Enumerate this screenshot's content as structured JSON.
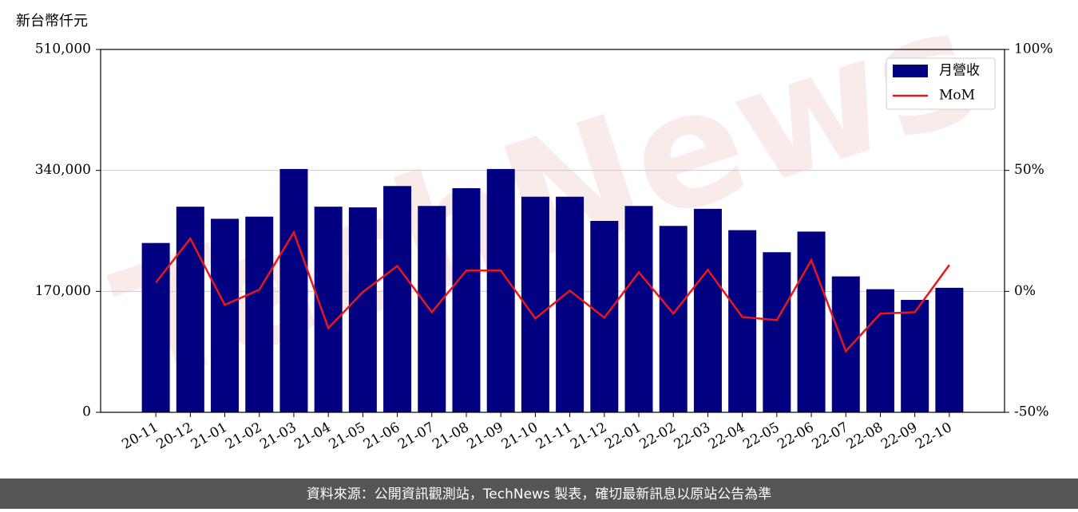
{
  "chart_data": {
    "type": "bar_line",
    "y_label": "新台幣仟元",
    "watermark": "TechNews",
    "categories": [
      "20-11",
      "20-12",
      "21-01",
      "21-02",
      "21-03",
      "21-04",
      "21-05",
      "21-06",
      "21-07",
      "21-08",
      "21-09",
      "21-10",
      "21-11",
      "21-12",
      "22-01",
      "22-02",
      "22-03",
      "22-04",
      "22-05",
      "22-06",
      "22-07",
      "22-08",
      "22-09",
      "22-10"
    ],
    "series": [
      {
        "name": "月營收",
        "type": "bar",
        "color": "#000080",
        "values": [
          238000,
          289000,
          272000,
          275000,
          342000,
          289000,
          288000,
          318000,
          290000,
          315000,
          342000,
          303000,
          303000,
          269000,
          290000,
          262000,
          286000,
          256000,
          225000,
          254000,
          191000,
          173000,
          158000,
          175000
        ]
      },
      {
        "name": "MoM",
        "type": "line",
        "axis": "y2",
        "color": "#e8171c",
        "values": [
          3.6,
          21.8,
          -5.6,
          0.7,
          24.4,
          -15.2,
          -0.3,
          10.5,
          -8.6,
          8.6,
          8.6,
          -11.2,
          0.3,
          -10.9,
          7.9,
          -9.2,
          8.9,
          -10.6,
          -11.9,
          12.9,
          -24.7,
          -9.2,
          -8.6,
          10.9
        ]
      }
    ],
    "ylim": [
      0,
      510000
    ],
    "yticks": [
      0,
      {
        "value": 170000,
        "label": "170,000"
      },
      {
        "value": 340000,
        "label": "340,000"
      },
      {
        "value": 510000,
        "label": "510,000"
      }
    ],
    "y2lim": [
      -50,
      100
    ],
    "y2ticks": [
      {
        "value": -50,
        "label": "-50%"
      },
      {
        "value": 0,
        "label": "0%"
      },
      {
        "value": 50,
        "label": "50%"
      },
      {
        "value": 100,
        "label": "100%"
      }
    ],
    "grid": true,
    "legend": "upper right",
    "footer": "資料來源：公開資訊觀測站，TechNews 製表，確切最新訊息以原站公告為準"
  }
}
